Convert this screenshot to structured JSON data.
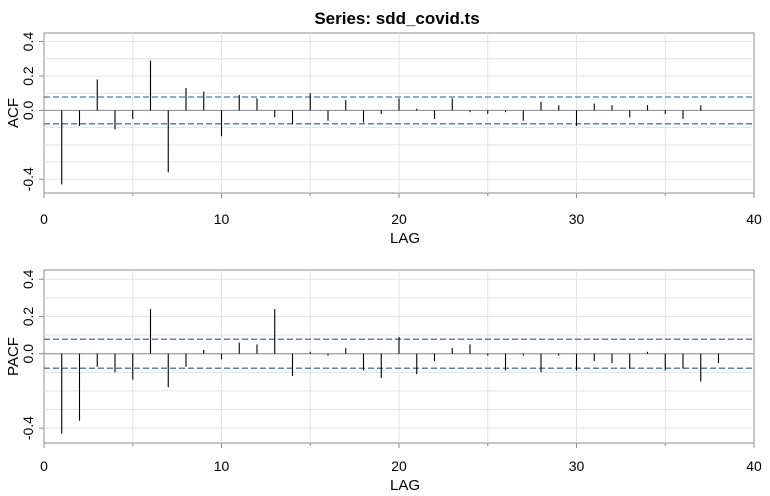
{
  "title": "Series:  sdd_covid.ts",
  "colors": {
    "spike": "#000000",
    "bounds": "#1f5f8b",
    "grid": "#e3e3e3",
    "frame": "#8c8c8c"
  },
  "chart_data": [
    {
      "type": "bar",
      "name": "acf",
      "ylabel": "ACF",
      "xlabel": "LAG",
      "xlim": [
        0,
        40
      ],
      "ylim": [
        -0.48,
        0.45
      ],
      "xticks": [
        0,
        10,
        20,
        30,
        40
      ],
      "yticks": [
        -0.4,
        0.0,
        0.2,
        0.4
      ],
      "yticklabels": [
        "-0.4",
        "0.0",
        "0.2",
        "0.4"
      ],
      "grid": true,
      "confidence_bound": 0.078,
      "lags": [
        1,
        2,
        3,
        4,
        5,
        6,
        7,
        8,
        9,
        10,
        11,
        12,
        13,
        14,
        15,
        16,
        17,
        18,
        19,
        20,
        21,
        22,
        23,
        24,
        25,
        26,
        27,
        28,
        29,
        30,
        31,
        32,
        33,
        34,
        35,
        36,
        37
      ],
      "values": [
        -0.43,
        -0.09,
        0.18,
        -0.11,
        -0.05,
        0.29,
        -0.36,
        0.13,
        0.11,
        -0.15,
        0.09,
        0.07,
        -0.04,
        -0.08,
        0.1,
        -0.06,
        0.06,
        -0.07,
        -0.02,
        0.07,
        0.01,
        -0.05,
        0.07,
        -0.01,
        -0.02,
        -0.01,
        -0.06,
        0.05,
        0.03,
        -0.09,
        0.04,
        0.03,
        -0.04,
        0.03,
        -0.02,
        -0.05,
        0.03
      ]
    },
    {
      "type": "bar",
      "name": "pacf",
      "ylabel": "PACF",
      "xlabel": "LAG",
      "xlim": [
        0,
        40
      ],
      "ylim": [
        -0.48,
        0.45
      ],
      "xticks": [
        0,
        10,
        20,
        30,
        40
      ],
      "yticks": [
        -0.4,
        0.0,
        0.2,
        0.4
      ],
      "yticklabels": [
        "-0.4",
        "0.0",
        "0.2",
        "0.4"
      ],
      "grid": true,
      "confidence_bound": 0.078,
      "lags": [
        1,
        2,
        3,
        4,
        5,
        6,
        7,
        8,
        9,
        10,
        11,
        12,
        13,
        14,
        15,
        16,
        17,
        18,
        19,
        20,
        21,
        22,
        23,
        24,
        25,
        26,
        27,
        28,
        29,
        30,
        31,
        32,
        33,
        34,
        35,
        36,
        37,
        38
      ],
      "values": [
        -0.43,
        -0.36,
        -0.07,
        -0.1,
        -0.14,
        0.24,
        -0.18,
        -0.07,
        0.02,
        -0.03,
        0.06,
        0.05,
        0.24,
        -0.12,
        0.01,
        -0.01,
        0.03,
        -0.09,
        -0.13,
        0.09,
        -0.11,
        -0.04,
        0.03,
        0.05,
        -0.01,
        -0.09,
        -0.01,
        -0.1,
        -0.01,
        -0.09,
        -0.04,
        -0.05,
        -0.08,
        0.01,
        -0.09,
        -0.08,
        -0.15,
        -0.05
      ]
    }
  ]
}
